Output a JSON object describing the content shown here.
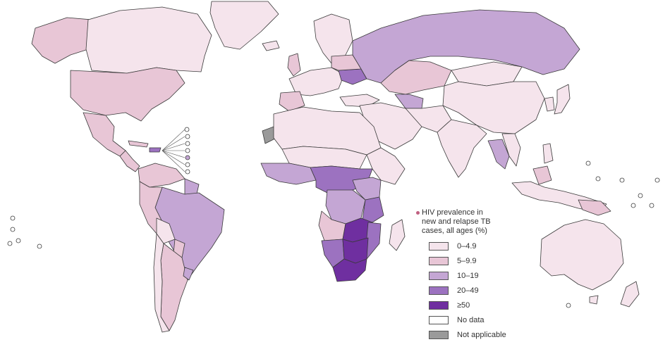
{
  "legend": {
    "title_lines": [
      "HIV prevalence in",
      "new and relapse TB",
      "cases, all ages (%)"
    ],
    "items": [
      {
        "label": "0–4.9",
        "color": "#f5e4ec"
      },
      {
        "label": "5–9.9",
        "color": "#e8c6d6"
      },
      {
        "label": "10–19",
        "color": "#c4a6d4"
      },
      {
        "label": "20–49",
        "color": "#9c72c0"
      },
      {
        "label": "≥50",
        "color": "#6f2fa0"
      },
      {
        "label": "No data",
        "color": "#ffffff"
      },
      {
        "label": "Not applicable",
        "color": "#9a9a9a"
      }
    ]
  }
}
